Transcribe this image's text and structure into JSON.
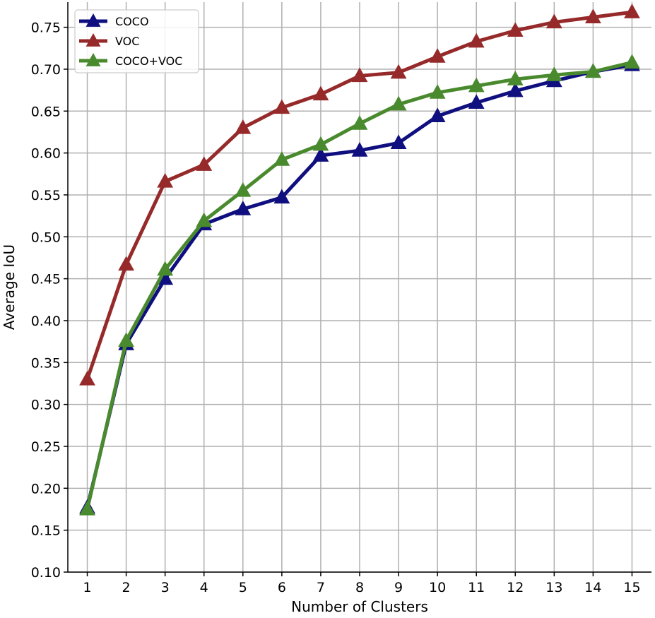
{
  "chart_data": {
    "type": "line",
    "title": "",
    "xlabel": "Number of Clusters",
    "ylabel": "Average IoU",
    "xlim": [
      0.5,
      15.5
    ],
    "ylim": [
      0.1,
      0.78
    ],
    "x_ticks": [
      1,
      2,
      3,
      4,
      5,
      6,
      7,
      8,
      9,
      10,
      11,
      12,
      13,
      14,
      15
    ],
    "y_ticks": [
      0.1,
      0.15,
      0.2,
      0.25,
      0.3,
      0.35,
      0.4,
      0.45,
      0.5,
      0.55,
      0.6,
      0.65,
      0.7,
      0.75
    ],
    "y_tick_labels": [
      "0.10",
      "0.15",
      "0.20",
      "0.25",
      "0.30",
      "0.35",
      "0.40",
      "0.45",
      "0.50",
      "0.55",
      "0.60",
      "0.65",
      "0.70",
      "0.75"
    ],
    "grid": true,
    "legend_position": "top-left",
    "marker": "triangle",
    "x": [
      1,
      2,
      3,
      4,
      5,
      6,
      7,
      8,
      9,
      10,
      11,
      12,
      13,
      14,
      15
    ],
    "series": [
      {
        "name": "COCO",
        "color": "#0f0f7f",
        "values": [
          0.177,
          0.372,
          0.45,
          0.515,
          0.533,
          0.547,
          0.597,
          0.603,
          0.612,
          0.644,
          0.66,
          0.674,
          0.686,
          0.697,
          0.705
        ]
      },
      {
        "name": "VOC",
        "color": "#962a2a",
        "values": [
          0.33,
          0.467,
          0.566,
          0.586,
          0.63,
          0.654,
          0.67,
          0.692,
          0.696,
          0.715,
          0.733,
          0.746,
          0.756,
          0.762,
          0.768
        ]
      },
      {
        "name": "COCO+VOC",
        "color": "#4a8a2e",
        "values": [
          0.175,
          0.376,
          0.461,
          0.519,
          0.555,
          0.592,
          0.61,
          0.635,
          0.658,
          0.672,
          0.68,
          0.688,
          0.693,
          0.697,
          0.708
        ]
      }
    ]
  }
}
